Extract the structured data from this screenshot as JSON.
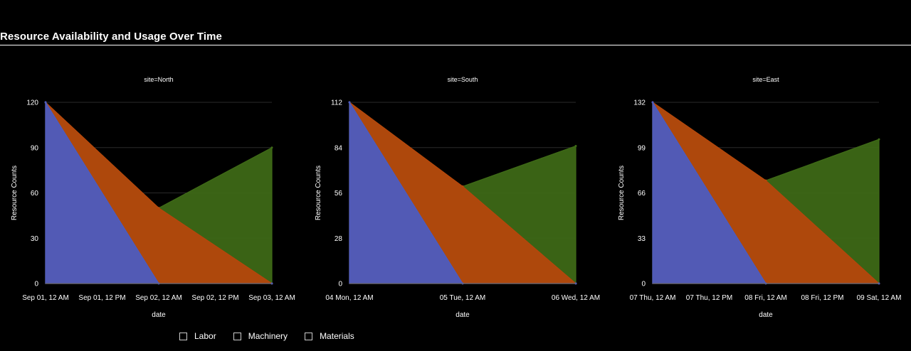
{
  "page": {
    "title": "Resource Availability and Usage Over Time"
  },
  "legend": {
    "items": [
      "Labor",
      "Machinery",
      "Materials"
    ]
  },
  "colors": {
    "labor": "#4a5cc4",
    "machinery": "#b8450c",
    "materials": "#3f6b17",
    "grid": "#2a2a2a"
  },
  "chart_data": [
    {
      "type": "area",
      "title": "site=North",
      "xlabel": "date",
      "ylabel": "Resource Counts",
      "x": [
        "Sep 01, 12 AM",
        "Sep 02, 12 AM",
        "Sep 03, 12 AM"
      ],
      "x_ticks": [
        "Sep 01, 12 AM",
        "Sep 01, 12 PM",
        "Sep 02, 12 AM",
        "Sep 02, 12 PM",
        "Sep 03, 12 AM"
      ],
      "y_ticks": [
        "0",
        "30",
        "60",
        "90",
        "120"
      ],
      "ylim": [
        0,
        120
      ],
      "series": [
        {
          "name": "Labor",
          "values": [
            120,
            0,
            0
          ]
        },
        {
          "name": "Machinery",
          "values": [
            120,
            50,
            0
          ]
        },
        {
          "name": "Materials",
          "values": [
            120,
            50,
            90
          ]
        }
      ]
    },
    {
      "type": "area",
      "title": "site=South",
      "xlabel": "date",
      "ylabel": "Resource Counts",
      "x": [
        "04 Mon, 12 AM",
        "05 Tue, 12 AM",
        "06 Wed, 12 AM"
      ],
      "x_ticks": [
        "04 Mon, 12 AM",
        "05 Tue, 12 AM",
        "06 Wed, 12 AM"
      ],
      "y_ticks": [
        "0",
        "28",
        "56",
        "84",
        "112"
      ],
      "ylim": [
        0,
        112
      ],
      "series": [
        {
          "name": "Labor",
          "values": [
            112,
            0,
            0
          ]
        },
        {
          "name": "Machinery",
          "values": [
            112,
            60,
            0
          ]
        },
        {
          "name": "Materials",
          "values": [
            112,
            60,
            85
          ]
        }
      ]
    },
    {
      "type": "area",
      "title": "site=East",
      "xlabel": "date",
      "ylabel": "Resource Counts",
      "x": [
        "07 Thu, 12 AM",
        "08 Fri, 12 AM",
        "09 Sat, 12 AM"
      ],
      "x_ticks": [
        "07 Thu, 12 AM",
        "07 Thu, 12 PM",
        "08 Fri, 12 AM",
        "08 Fri, 12 PM",
        "09 Sat, 12 AM"
      ],
      "y_ticks": [
        "0",
        "33",
        "66",
        "99",
        "132"
      ],
      "ylim": [
        0,
        132
      ],
      "series": [
        {
          "name": "Labor",
          "values": [
            132,
            0,
            0
          ]
        },
        {
          "name": "Machinery",
          "values": [
            132,
            75,
            0
          ]
        },
        {
          "name": "Materials",
          "values": [
            132,
            75,
            105
          ]
        }
      ]
    }
  ]
}
